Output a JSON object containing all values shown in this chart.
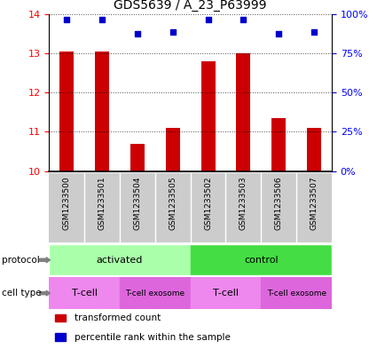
{
  "title": "GDS5639 / A_23_P63999",
  "samples": [
    "GSM1233500",
    "GSM1233501",
    "GSM1233504",
    "GSM1233505",
    "GSM1233502",
    "GSM1233503",
    "GSM1233506",
    "GSM1233507"
  ],
  "bar_values": [
    13.05,
    13.05,
    10.7,
    11.1,
    12.8,
    13.0,
    11.35,
    11.1
  ],
  "percentile_values": [
    13.85,
    13.85,
    13.5,
    13.55,
    13.85,
    13.85,
    13.5,
    13.55
  ],
  "bar_color": "#cc0000",
  "dot_color": "#0000cc",
  "ylim": [
    10,
    14
  ],
  "yticks_left": [
    10,
    11,
    12,
    13,
    14
  ],
  "yticks_right": [
    0,
    25,
    50,
    75,
    100
  ],
  "ytick_labels_left": [
    "10",
    "11",
    "12",
    "13",
    "14"
  ],
  "ytick_labels_right": [
    "0%",
    "25%",
    "50%",
    "75%",
    "100%"
  ],
  "protocol_labels": [
    {
      "label": "activated",
      "start": 0,
      "end": 4,
      "color": "#aaffaa"
    },
    {
      "label": "control",
      "start": 4,
      "end": 8,
      "color": "#44dd44"
    }
  ],
  "cell_type_labels": [
    {
      "label": "T-cell",
      "start": 0,
      "end": 2,
      "color": "#ee88ee"
    },
    {
      "label": "T-cell exosome",
      "start": 2,
      "end": 4,
      "color": "#dd66dd"
    },
    {
      "label": "T-cell",
      "start": 4,
      "end": 6,
      "color": "#ee88ee"
    },
    {
      "label": "T-cell exosome",
      "start": 6,
      "end": 8,
      "color": "#dd66dd"
    }
  ],
  "sample_label_area_color": "#cccccc",
  "legend_items": [
    {
      "color": "#cc0000",
      "label": "transformed count"
    },
    {
      "color": "#0000cc",
      "label": "percentile rank within the sample"
    }
  ]
}
